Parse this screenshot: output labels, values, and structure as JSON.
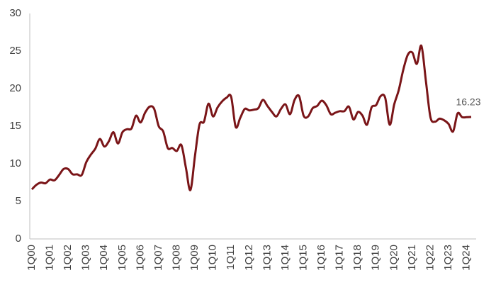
{
  "chart_data": {
    "type": "line",
    "categories": [
      "1Q00",
      null,
      null,
      null,
      "1Q01",
      null,
      null,
      null,
      "1Q02",
      null,
      null,
      null,
      "1Q03",
      null,
      null,
      null,
      "1Q04",
      null,
      null,
      null,
      "1Q05",
      null,
      null,
      null,
      "1Q06",
      null,
      null,
      null,
      "1Q07",
      null,
      null,
      null,
      "1Q08",
      null,
      null,
      null,
      "1Q09",
      null,
      null,
      null,
      "1Q10",
      null,
      null,
      null,
      "1Q11",
      null,
      null,
      null,
      "1Q12",
      null,
      null,
      null,
      "1Q13",
      null,
      null,
      null,
      "1Q14",
      null,
      null,
      null,
      "1Q15",
      null,
      null,
      null,
      "1Q16",
      null,
      null,
      null,
      "1Q17",
      null,
      null,
      null,
      "1Q18",
      null,
      null,
      null,
      "1Q19",
      null,
      null,
      null,
      "1Q20",
      null,
      null,
      null,
      "1Q21",
      null,
      null,
      null,
      "1Q22",
      null,
      null,
      null,
      "1Q23",
      null,
      null,
      null,
      "1Q24",
      null
    ],
    "values": [
      6.6,
      7.2,
      7.5,
      7.4,
      7.9,
      7.8,
      8.5,
      9.3,
      9.3,
      8.6,
      8.6,
      8.5,
      10.2,
      11.2,
      12.0,
      13.3,
      12.3,
      13.0,
      14.2,
      12.7,
      14.2,
      14.6,
      14.7,
      16.4,
      15.5,
      16.8,
      17.6,
      17.3,
      15.0,
      14.3,
      12.1,
      12.1,
      11.7,
      12.5,
      9.5,
      6.5,
      11.0,
      15.2,
      15.6,
      18.0,
      16.3,
      17.5,
      18.3,
      18.8,
      18.9,
      14.9,
      16.1,
      17.3,
      17.1,
      17.2,
      17.4,
      18.5,
      17.7,
      16.9,
      16.3,
      17.3,
      17.9,
      16.6,
      18.5,
      19.0,
      16.4,
      16.3,
      17.4,
      17.7,
      18.4,
      17.8,
      16.6,
      16.8,
      17.0,
      17.0,
      17.6,
      15.9,
      16.9,
      16.4,
      15.2,
      17.5,
      17.8,
      19.0,
      18.8,
      15.2,
      17.9,
      19.8,
      22.5,
      24.5,
      24.8,
      23.3,
      25.7,
      21.0,
      16.2,
      15.6,
      16.0,
      15.8,
      15.3,
      14.3,
      16.7,
      16.2,
      16.2,
      16.23
    ],
    "color": "#7a1518",
    "ylim": [
      0,
      30
    ],
    "yticks": [
      0,
      5,
      10,
      15,
      20,
      25,
      30
    ],
    "grid": false,
    "show_last_value": true
  }
}
